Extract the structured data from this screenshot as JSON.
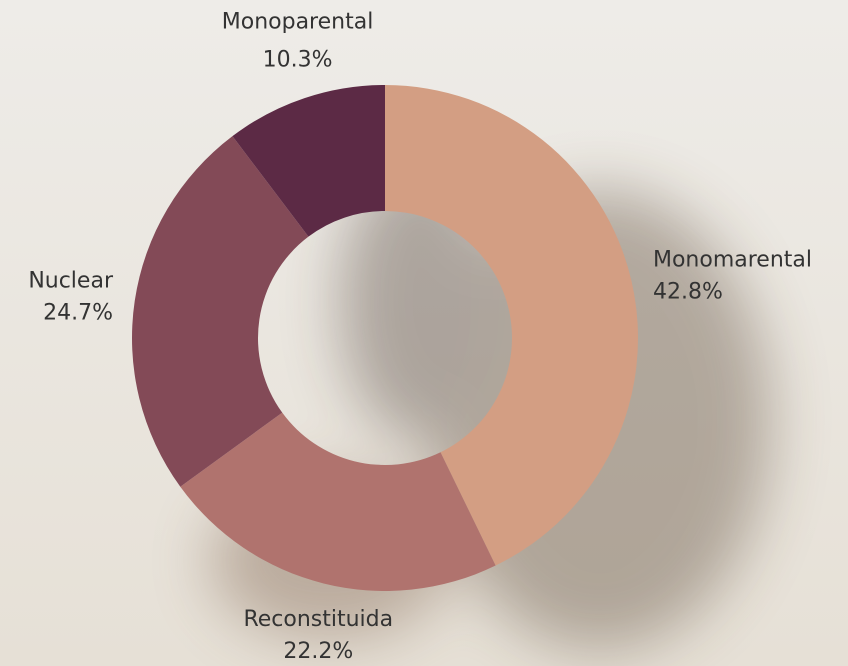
{
  "chart_data": {
    "type": "donut",
    "categories": [
      "Monomarental",
      "Reconstituida",
      "Nuclear",
      "Monoparental"
    ],
    "values": [
      42.8,
      22.2,
      24.7,
      10.3
    ],
    "value_labels": [
      "42.8%",
      "22.2%",
      "24.7%",
      "10.3%"
    ],
    "colors": [
      "#d39e83",
      "#b0736e",
      "#834a57",
      "#5c2a45"
    ]
  }
}
